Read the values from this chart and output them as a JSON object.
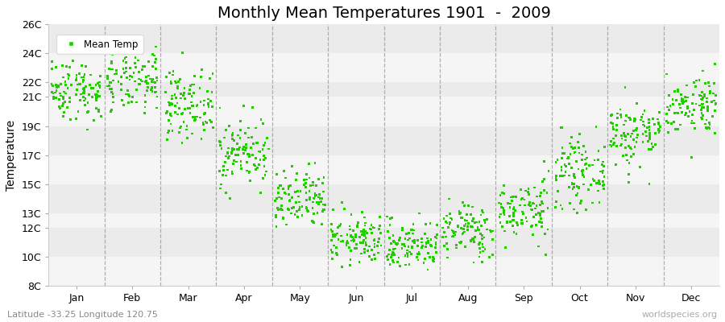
{
  "title": "Monthly Mean Temperatures 1901  -  2009",
  "ylabel": "Temperature",
  "subtitle": "Latitude -33.25 Longitude 120.75",
  "credit": "worldspecies.org",
  "legend_label": "Mean Temp",
  "dot_color": "#22cc00",
  "fig_facecolor": "#ffffff",
  "ax_facecolor": "#f5f5f5",
  "band_colors_even": "#f5f5f5",
  "band_colors_odd": "#ebebeb",
  "yticks": [
    8,
    10,
    12,
    13,
    15,
    17,
    19,
    21,
    22,
    24,
    26
  ],
  "ylim": [
    8,
    26
  ],
  "months": [
    "Jan",
    "Feb",
    "Mar",
    "Apr",
    "May",
    "Jun",
    "Jul",
    "Aug",
    "Sep",
    "Oct",
    "Nov",
    "Dec"
  ],
  "monthly_means": [
    21.5,
    22.0,
    20.5,
    17.2,
    13.8,
    11.2,
    10.8,
    11.8,
    13.2,
    15.8,
    18.5,
    20.5
  ],
  "monthly_stds": [
    1.05,
    1.05,
    1.15,
    1.2,
    1.05,
    0.85,
    0.85,
    0.95,
    1.05,
    1.15,
    1.15,
    1.05
  ],
  "n_years": 109,
  "dot_size": 4,
  "title_fontsize": 14,
  "axis_label_fontsize": 10,
  "tick_fontsize": 9
}
